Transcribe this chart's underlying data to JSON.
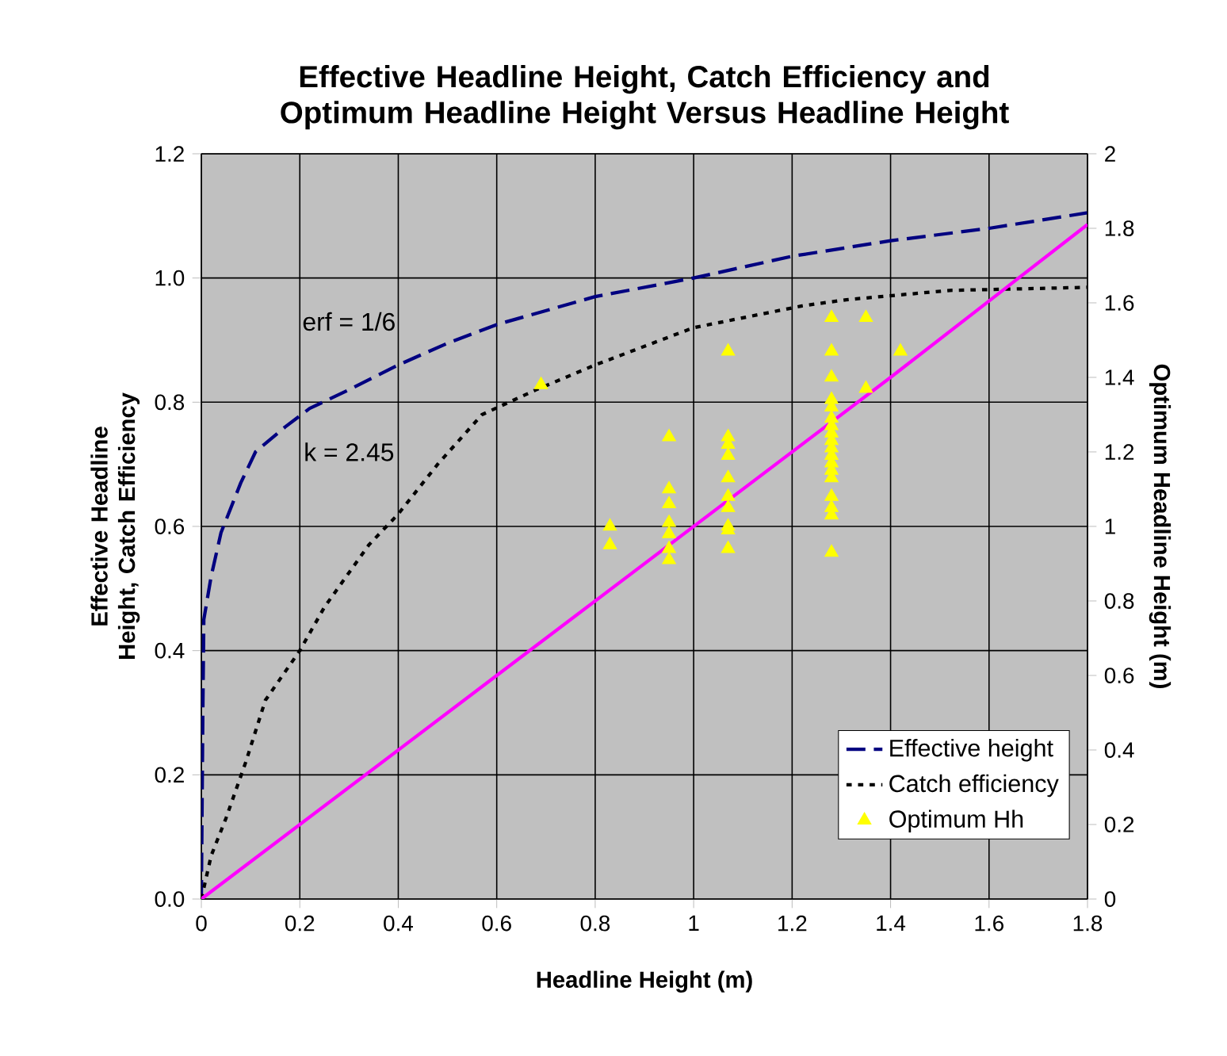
{
  "chart_data": {
    "type": "line",
    "title": "Effective Headline Height, Catch Efficiency and Optimum Headline Height Versus Headline Height",
    "xlabel": "Headline Height (m)",
    "ylabel": "Effective Headline Height, Catch Efficiency",
    "y2label": "Optimum Headline Height (m)",
    "annotations": [
      "erf = 1/6",
      "k = 2.45"
    ],
    "xlim": [
      0,
      1.8
    ],
    "xticks": [
      0,
      0.2,
      0.4,
      0.6,
      0.8,
      1,
      1.2,
      1.4,
      1.6,
      1.8
    ],
    "ylim": [
      0,
      1.2
    ],
    "yticks": [
      {
        "value": 0,
        "label": "0.0"
      },
      {
        "value": 0.2,
        "label": "0.2"
      },
      {
        "value": 0.4,
        "label": "0.4"
      },
      {
        "value": 0.6,
        "label": "0.6"
      },
      {
        "value": 0.8,
        "label": "0.8"
      },
      {
        "value": 1,
        "label": "1.0"
      },
      {
        "value": 1.2,
        "label": "1.2"
      }
    ],
    "y2lim": [
      0,
      2
    ],
    "y2ticks": [
      0,
      0.2,
      0.4,
      0.6,
      0.8,
      1,
      1.2,
      1.4,
      1.6,
      1.8,
      2
    ],
    "grid": true,
    "legend": "bottom right",
    "series": [
      {
        "name": "Effective height",
        "line_style": "dashed",
        "color": "#000080",
        "x": [
          0,
          0.003,
          0.005,
          0.02,
          0.04,
          0.08,
          0.11,
          0.17,
          0.22,
          0.3,
          0.4,
          0.5,
          0.6,
          0.8,
          1.0,
          1.2,
          1.4,
          1.6,
          1.8
        ],
        "values": [
          0,
          0.3,
          0.45,
          0.52,
          0.59,
          0.67,
          0.72,
          0.76,
          0.79,
          0.82,
          0.86,
          0.895,
          0.925,
          0.97,
          1.0,
          1.035,
          1.06,
          1.08,
          1.105
        ]
      },
      {
        "name": "Catch efficiency",
        "line_style": "dotted",
        "color": "#000000",
        "x": [
          0,
          0.02,
          0.05,
          0.09,
          0.13,
          0.2,
          0.25,
          0.34,
          0.4,
          0.48,
          0.57,
          0.68,
          0.8,
          1.0,
          1.22,
          1.31,
          1.52,
          1.8
        ],
        "values": [
          0,
          0.07,
          0.13,
          0.22,
          0.32,
          0.4,
          0.47,
          0.57,
          0.62,
          0.7,
          0.78,
          0.82,
          0.86,
          0.92,
          0.955,
          0.965,
          0.98,
          0.985
        ]
      },
      {
        "line_style": "solid",
        "axis": "y2",
        "color": "#ff00ff",
        "x": [
          0,
          0.6,
          1.0,
          1.4,
          1.8
        ],
        "values": [
          0,
          0.6,
          1.0,
          1.4,
          1.81
        ]
      },
      {
        "name": "Optimum Hh",
        "type": "scatter",
        "marker": "triangle",
        "axis": "y2",
        "color": "#ffff00",
        "x": [
          0.69,
          0.83,
          0.83,
          0.95,
          0.95,
          0.95,
          0.95,
          0.95,
          0.95,
          0.95,
          1.07,
          1.07,
          1.07,
          1.07,
          1.07,
          1.07,
          1.07,
          1.07,
          1.07,
          1.07,
          1.28,
          1.28,
          1.28,
          1.28,
          1.28,
          1.28,
          1.28,
          1.28,
          1.28,
          1.28,
          1.28,
          1.28,
          1.28,
          1.28,
          1.28,
          1.28,
          1.28,
          1.28,
          1.35,
          1.35,
          1.42
        ],
        "values": [
          1.38,
          1.0,
          0.95,
          1.24,
          1.1,
          1.06,
          1.01,
          0.98,
          0.94,
          0.91,
          1.47,
          1.24,
          1.22,
          1.19,
          1.13,
          1.08,
          1.05,
          1.0,
          0.99,
          0.94,
          1.56,
          1.47,
          1.4,
          1.34,
          1.32,
          1.29,
          1.27,
          1.25,
          1.23,
          1.21,
          1.19,
          1.17,
          1.15,
          1.13,
          1.08,
          1.05,
          1.03,
          0.93,
          1.56,
          1.37,
          1.47
        ]
      }
    ]
  }
}
